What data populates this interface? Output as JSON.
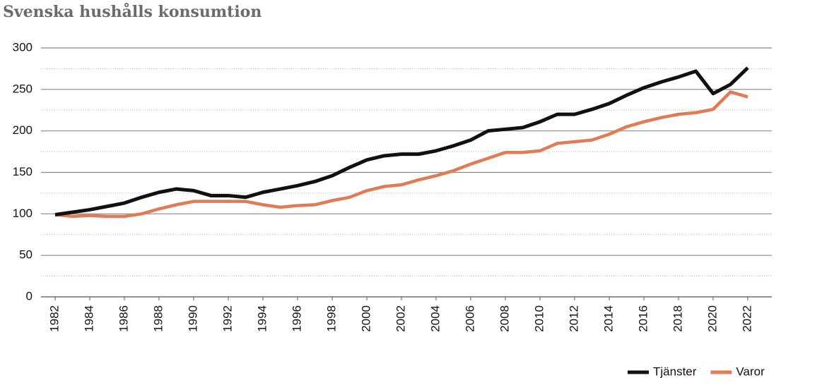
{
  "chart_data": {
    "type": "line",
    "title": "Svenska hushålls konsumtion",
    "x": [
      1982,
      1983,
      1984,
      1985,
      1986,
      1987,
      1988,
      1989,
      1990,
      1991,
      1992,
      1993,
      1994,
      1995,
      1996,
      1997,
      1998,
      1999,
      2000,
      2001,
      2002,
      2003,
      2004,
      2005,
      2006,
      2007,
      2008,
      2009,
      2010,
      2011,
      2012,
      2013,
      2014,
      2015,
      2016,
      2017,
      2018,
      2019,
      2020,
      2021,
      2022
    ],
    "series": [
      {
        "name": "Tjänster",
        "color": "#111111",
        "values": [
          99,
          102,
          105,
          109,
          113,
          120,
          126,
          130,
          128,
          122,
          122,
          120,
          126,
          130,
          134,
          139,
          146,
          156,
          165,
          170,
          172,
          172,
          176,
          182,
          189,
          200,
          202,
          204,
          211,
          220,
          220,
          226,
          233,
          243,
          252,
          259,
          265,
          272,
          245,
          256,
          276
        ]
      },
      {
        "name": "Varor",
        "color": "#e07b54",
        "values": [
          99,
          97,
          98,
          97,
          97,
          100,
          106,
          111,
          115,
          115,
          115,
          115,
          111,
          108,
          110,
          111,
          116,
          120,
          128,
          133,
          135,
          141,
          146,
          152,
          160,
          167,
          174,
          174,
          176,
          185,
          187,
          189,
          196,
          205,
          211,
          216,
          220,
          222,
          226,
          247,
          241
        ]
      }
    ],
    "xlim": [
      1982,
      2022
    ],
    "xticks": [
      1982,
      1984,
      1986,
      1988,
      1990,
      1992,
      1994,
      1996,
      1998,
      2000,
      2002,
      2004,
      2006,
      2008,
      2010,
      2012,
      2014,
      2016,
      2018,
      2020,
      2022
    ],
    "ylim": [
      0,
      300
    ],
    "yticks": [
      0,
      50,
      100,
      150,
      200,
      250,
      300
    ],
    "grid": true,
    "legend": "bottom-right"
  }
}
